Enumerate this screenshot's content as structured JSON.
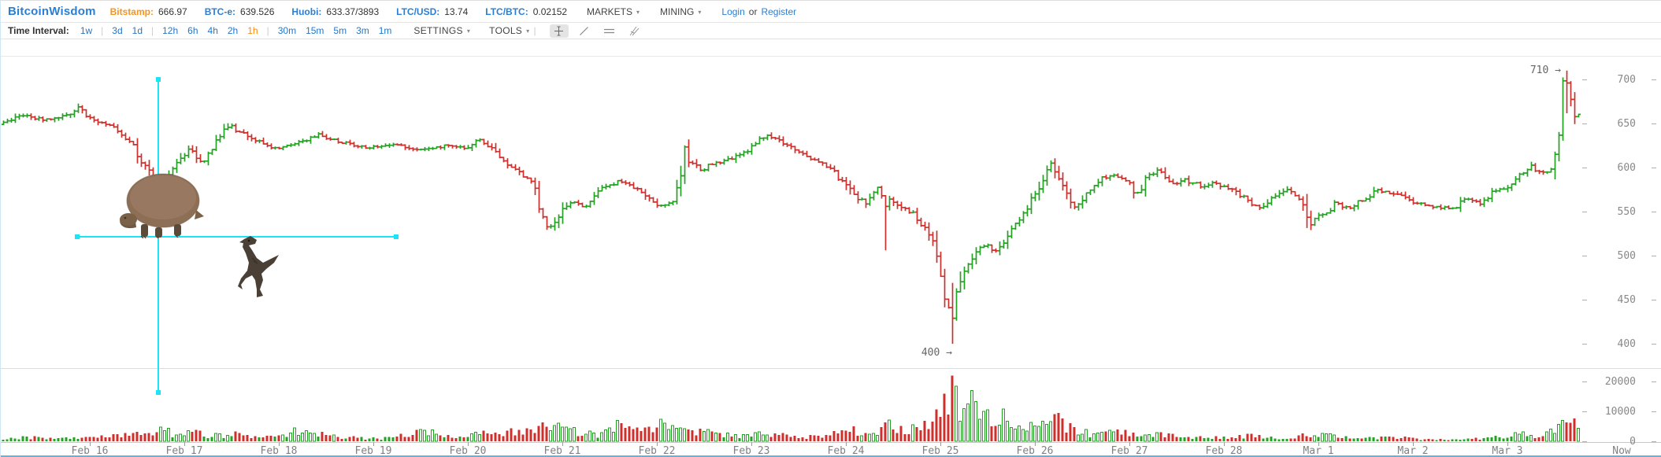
{
  "header": {
    "logo": "BitcoinWisdom",
    "tickers": [
      {
        "label": "Bitstamp:",
        "value": "666.97",
        "color": "#f7941d"
      },
      {
        "label": "BTC-e:",
        "value": "639.526",
        "color": "#2a7fd4"
      },
      {
        "label": "Huobi:",
        "value": "633.37/3893",
        "color": "#2a7fd4"
      },
      {
        "label": "LTC/USD:",
        "value": "13.74",
        "color": "#2a7fd4"
      },
      {
        "label": "LTC/BTC:",
        "value": "0.02152",
        "color": "#2a7fd4"
      }
    ],
    "menus": [
      {
        "label": "MARKETS"
      },
      {
        "label": "MINING"
      }
    ],
    "auth": {
      "login": "Login",
      "or": "or",
      "register": "Register"
    }
  },
  "ui": {
    "caret": "▾"
  },
  "toolbar": {
    "time_interval_label": "Time Interval:",
    "interval_groups": [
      {
        "items": [
          {
            "label": "1w",
            "active": false
          }
        ]
      },
      {
        "items": [
          {
            "label": "3d",
            "active": false
          },
          {
            "label": "1d",
            "active": false
          }
        ]
      },
      {
        "items": [
          {
            "label": "12h",
            "active": false
          },
          {
            "label": "6h",
            "active": false
          },
          {
            "label": "4h",
            "active": false
          },
          {
            "label": "2h",
            "active": false
          },
          {
            "label": "1h",
            "active": true
          }
        ]
      },
      {
        "items": [
          {
            "label": "30m",
            "active": false
          },
          {
            "label": "15m",
            "active": false
          },
          {
            "label": "5m",
            "active": false
          },
          {
            "label": "3m",
            "active": false
          },
          {
            "label": "1m",
            "active": false
          }
        ]
      }
    ],
    "settings_label": "SETTINGS",
    "tools_label": "TOOLS",
    "drawing_tools": [
      "crosshair",
      "trend-line",
      "horizontal-lines",
      "fan-lines"
    ]
  },
  "chart": {
    "annotations": {
      "high": {
        "text": "710 →"
      },
      "low": {
        "text": "400 →"
      }
    },
    "colors": {
      "up": "#23a123",
      "down": "#ce2f2b",
      "crosshair": "#1ce4f7",
      "accent_blue": "#2a7fd4",
      "active_orange": "#ff8800",
      "bottom_bar": "#5fb2e2"
    }
  },
  "chart_data": {
    "type": "candlestick+volume",
    "interval": "1h",
    "title": "",
    "price_axis_ticks": [
      700,
      650,
      600,
      550,
      500,
      450,
      400
    ],
    "volume_axis_ticks": [
      20000,
      10000,
      0
    ],
    "x_labels": [
      "Feb 16",
      "Feb 17",
      "Feb 18",
      "Feb 19",
      "Feb 20",
      "Feb 21",
      "Feb 22",
      "Feb 23",
      "Feb 24",
      "Feb 25",
      "Feb 26",
      "Feb 27",
      "Feb 28",
      "Mar 1",
      "Mar 2",
      "Mar 3"
    ],
    "now_label": "Now",
    "price_range": [
      400,
      710
    ],
    "volume_range": [
      0,
      22000
    ],
    "extremes": {
      "high": {
        "day": 15.625,
        "price": 710
      },
      "low": {
        "day": 9.125,
        "price": 400
      }
    },
    "wicks": [
      {
        "day": 8.43,
        "low": 506
      },
      {
        "day": 9.125,
        "low": 400,
        "volume": 22000
      },
      {
        "day": 15.625,
        "high": 710
      }
    ],
    "price_path_anchors": [
      [
        -0.9,
        649
      ],
      [
        -0.7,
        660
      ],
      [
        -0.45,
        654
      ],
      [
        -0.25,
        659
      ],
      [
        -0.08,
        667
      ],
      [
        0.1,
        652
      ],
      [
        0.3,
        647
      ],
      [
        0.5,
        622
      ],
      [
        0.65,
        596
      ],
      [
        0.75,
        581
      ],
      [
        0.85,
        585
      ],
      [
        1.0,
        614
      ],
      [
        1.08,
        622
      ],
      [
        1.22,
        604
      ],
      [
        1.38,
        629
      ],
      [
        1.5,
        649
      ],
      [
        1.68,
        637
      ],
      [
        1.85,
        628
      ],
      [
        2.0,
        622
      ],
      [
        2.2,
        626
      ],
      [
        2.45,
        637
      ],
      [
        2.7,
        629
      ],
      [
        2.95,
        622
      ],
      [
        3.2,
        626
      ],
      [
        3.5,
        619
      ],
      [
        3.75,
        624
      ],
      [
        4.0,
        623
      ],
      [
        4.17,
        632
      ],
      [
        4.35,
        614
      ],
      [
        4.55,
        597
      ],
      [
        4.72,
        584
      ],
      [
        4.82,
        549
      ],
      [
        4.9,
        529
      ],
      [
        5.0,
        551
      ],
      [
        5.12,
        561
      ],
      [
        5.28,
        556
      ],
      [
        5.5,
        581
      ],
      [
        5.68,
        585
      ],
      [
        5.88,
        570
      ],
      [
        6.05,
        555
      ],
      [
        6.22,
        561
      ],
      [
        6.33,
        617
      ],
      [
        6.48,
        597
      ],
      [
        6.65,
        604
      ],
      [
        6.85,
        612
      ],
      [
        7.05,
        623
      ],
      [
        7.18,
        637
      ],
      [
        7.38,
        628
      ],
      [
        7.6,
        615
      ],
      [
        7.8,
        603
      ],
      [
        7.95,
        590
      ],
      [
        8.1,
        570
      ],
      [
        8.25,
        560
      ],
      [
        8.38,
        576
      ],
      [
        8.46,
        565
      ],
      [
        8.6,
        554
      ],
      [
        8.75,
        548
      ],
      [
        8.9,
        526
      ],
      [
        9.0,
        500
      ],
      [
        9.06,
        468
      ],
      [
        9.125,
        440
      ],
      [
        9.18,
        462
      ],
      [
        9.28,
        480
      ],
      [
        9.4,
        503
      ],
      [
        9.52,
        512
      ],
      [
        9.62,
        506
      ],
      [
        9.75,
        523
      ],
      [
        9.88,
        541
      ],
      [
        10.0,
        562
      ],
      [
        10.12,
        589
      ],
      [
        10.2,
        607
      ],
      [
        10.32,
        580
      ],
      [
        10.45,
        557
      ],
      [
        10.58,
        569
      ],
      [
        10.72,
        586
      ],
      [
        10.88,
        592
      ],
      [
        11.0,
        585
      ],
      [
        11.12,
        571
      ],
      [
        11.25,
        592
      ],
      [
        11.35,
        596
      ],
      [
        11.48,
        581
      ],
      [
        11.62,
        586
      ],
      [
        11.78,
        580
      ],
      [
        11.95,
        582
      ],
      [
        12.1,
        574
      ],
      [
        12.25,
        567
      ],
      [
        12.4,
        553
      ],
      [
        12.55,
        566
      ],
      [
        12.7,
        576
      ],
      [
        12.82,
        568
      ],
      [
        12.94,
        533
      ],
      [
        13.05,
        546
      ],
      [
        13.2,
        558
      ],
      [
        13.35,
        554
      ],
      [
        13.5,
        563
      ],
      [
        13.66,
        575
      ],
      [
        13.8,
        571
      ],
      [
        13.95,
        564
      ],
      [
        14.12,
        559
      ],
      [
        14.3,
        555
      ],
      [
        14.45,
        553
      ],
      [
        14.6,
        565
      ],
      [
        14.75,
        559
      ],
      [
        14.9,
        573
      ],
      [
        15.05,
        580
      ],
      [
        15.18,
        593
      ],
      [
        15.28,
        601
      ],
      [
        15.4,
        592
      ],
      [
        15.5,
        597
      ],
      [
        15.57,
        628
      ],
      [
        15.625,
        697
      ],
      [
        15.67,
        653
      ],
      [
        15.71,
        671
      ],
      [
        15.75,
        659
      ]
    ],
    "volume_anchors": [
      [
        -0.9,
        900
      ],
      [
        -0.5,
        1400
      ],
      [
        0.0,
        1100
      ],
      [
        0.3,
        1700
      ],
      [
        0.6,
        2600
      ],
      [
        0.75,
        3800
      ],
      [
        0.9,
        2200
      ],
      [
        1.1,
        2800
      ],
      [
        1.3,
        1800
      ],
      [
        1.5,
        2400
      ],
      [
        1.8,
        1500
      ],
      [
        2.1,
        2900
      ],
      [
        2.3,
        3600
      ],
      [
        2.5,
        2000
      ],
      [
        2.8,
        1200
      ],
      [
        3.1,
        900
      ],
      [
        3.4,
        2300
      ],
      [
        3.6,
        3400
      ],
      [
        3.9,
        1800
      ],
      [
        4.2,
        2600
      ],
      [
        4.5,
        3200
      ],
      [
        4.75,
        4800
      ],
      [
        4.9,
        5400
      ],
      [
        5.1,
        3600
      ],
      [
        5.4,
        1800
      ],
      [
        5.6,
        5800
      ],
      [
        5.8,
        3000
      ],
      [
        6.05,
        6400
      ],
      [
        6.2,
        3200
      ],
      [
        6.35,
        4200
      ],
      [
        6.6,
        2200
      ],
      [
        6.9,
        1600
      ],
      [
        7.1,
        2600
      ],
      [
        7.3,
        2000
      ],
      [
        7.6,
        1500
      ],
      [
        7.9,
        2800
      ],
      [
        8.1,
        3600
      ],
      [
        8.3,
        2400
      ],
      [
        8.45,
        5200
      ],
      [
        8.6,
        3400
      ],
      [
        8.8,
        4800
      ],
      [
        8.95,
        7500
      ],
      [
        9.05,
        11000
      ],
      [
        9.125,
        22000
      ],
      [
        9.2,
        9000
      ],
      [
        9.3,
        12500
      ],
      [
        9.45,
        7000
      ],
      [
        9.6,
        9500
      ],
      [
        9.75,
        5200
      ],
      [
        9.9,
        4200
      ],
      [
        10.05,
        5400
      ],
      [
        10.2,
        7200
      ],
      [
        10.35,
        4600
      ],
      [
        10.5,
        3000
      ],
      [
        10.7,
        2200
      ],
      [
        10.9,
        2800
      ],
      [
        11.1,
        1800
      ],
      [
        11.3,
        2400
      ],
      [
        11.5,
        1500
      ],
      [
        11.7,
        1100
      ],
      [
        11.9,
        1600
      ],
      [
        12.1,
        1200
      ],
      [
        12.3,
        2200
      ],
      [
        12.5,
        1300
      ],
      [
        12.7,
        900
      ],
      [
        12.95,
        2600
      ],
      [
        13.2,
        1400
      ],
      [
        13.5,
        900
      ],
      [
        13.8,
        1300
      ],
      [
        14.1,
        700
      ],
      [
        14.4,
        500
      ],
      [
        14.7,
        900
      ],
      [
        15.0,
        1500
      ],
      [
        15.2,
        2600
      ],
      [
        15.35,
        1600
      ],
      [
        15.5,
        3600
      ],
      [
        15.6,
        8500
      ],
      [
        15.65,
        11500
      ],
      [
        15.7,
        6500
      ],
      [
        15.75,
        4000
      ]
    ]
  }
}
